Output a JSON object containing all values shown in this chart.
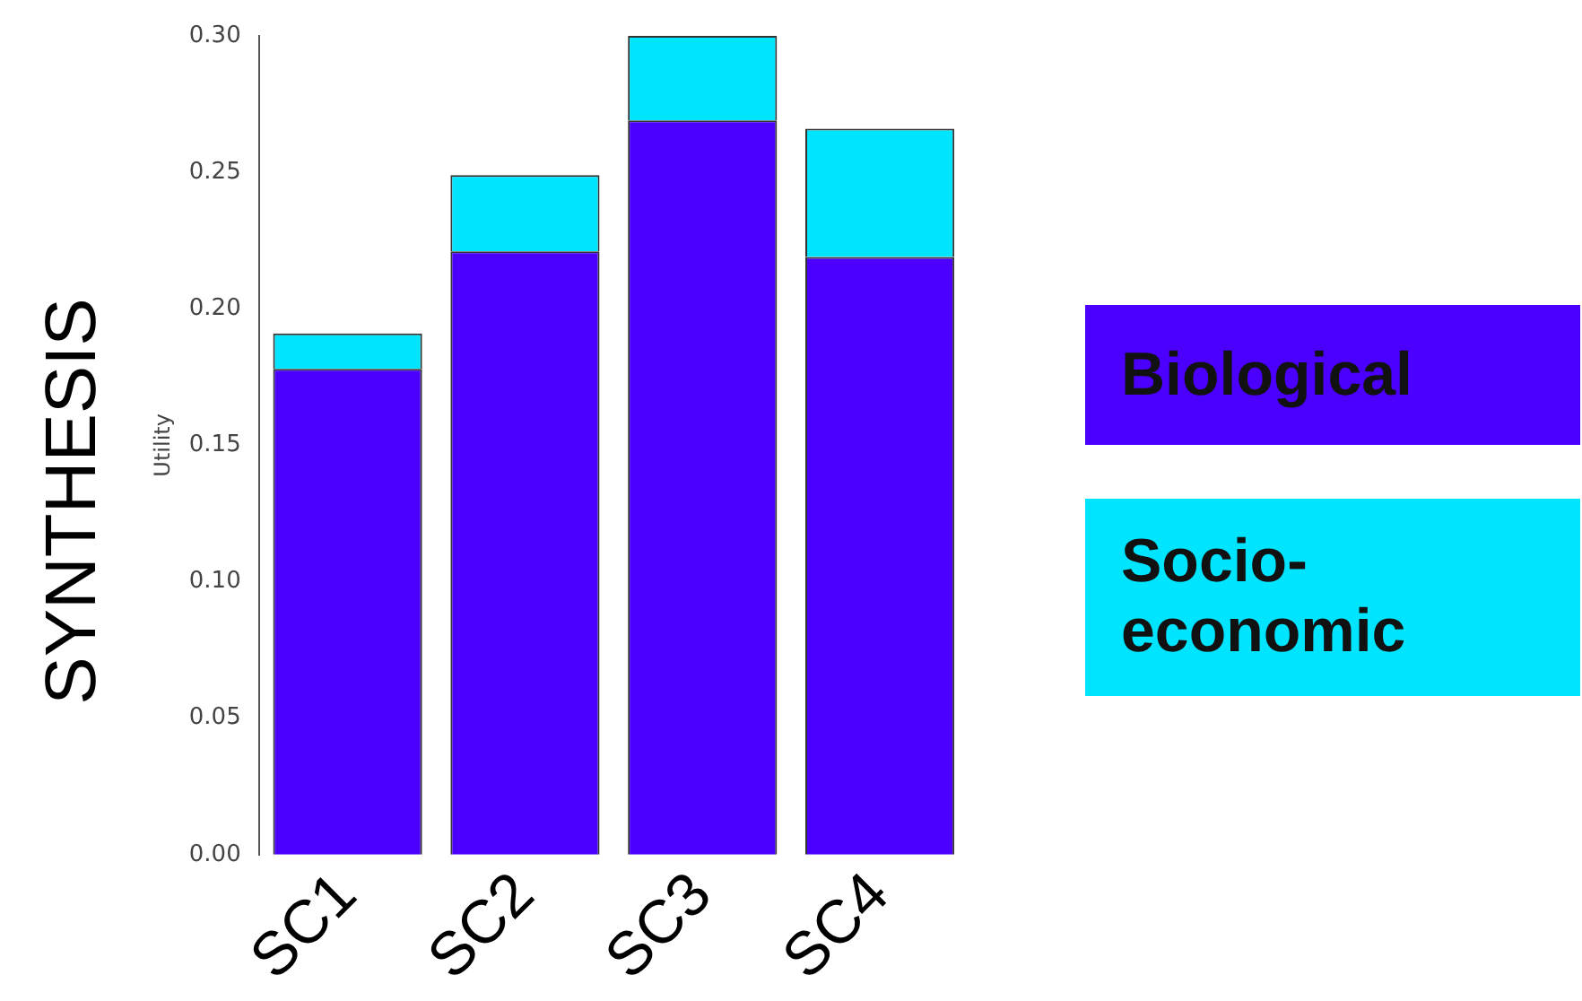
{
  "chart_data": {
    "type": "bar",
    "title": "SYNTHESIS",
    "ylabel": "Utility",
    "categories": [
      "SC1",
      "SC2",
      "SC3",
      "SC4"
    ],
    "stacked": true,
    "series": [
      {
        "name": "Biological",
        "color": "#4b00ff",
        "values": [
          0.178,
          0.221,
          0.269,
          0.219
        ]
      },
      {
        "name": "Socio-economic",
        "color": "#00e5ff",
        "values": [
          0.013,
          0.028,
          0.031,
          0.047
        ]
      }
    ],
    "ylim": [
      0,
      0.3
    ],
    "yticks": [
      {
        "value": 0,
        "label": "0.00"
      },
      {
        "value": 0.05,
        "label": "0.05"
      },
      {
        "value": 0.1,
        "label": "0.10"
      },
      {
        "value": 0.15,
        "label": "0.15"
      },
      {
        "value": 0.2,
        "label": "0.20"
      },
      {
        "value": 0.25,
        "label": "0.25"
      },
      {
        "value": 0.3,
        "label": "0.30"
      }
    ],
    "grid": false,
    "legend": "right"
  }
}
